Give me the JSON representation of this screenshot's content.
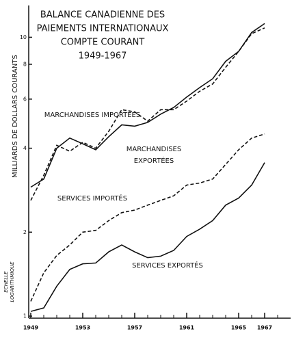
{
  "chart_data": {
    "type": "line",
    "title": [
      "BALANCE CANADIENNE DES",
      "PAIEMENTS INTERNATIONAUX",
      "COMPTE COURANT",
      "1949-1967"
    ],
    "y_label": "MILLIARDS DE DOLLARS COURANTS",
    "scale_label": [
      "ECHELLE",
      "LOGARITHMIQUE"
    ],
    "log_scale": true,
    "x": [
      1949,
      1950,
      1951,
      1952,
      1953,
      1954,
      1955,
      1956,
      1957,
      1958,
      1959,
      1960,
      1961,
      1962,
      1963,
      1964,
      1965,
      1966,
      1967
    ],
    "series": [
      {
        "name": "MARCHANDISES IMPORTÉES",
        "color": "#111111",
        "dash": true,
        "values": [
          2.6,
          3.2,
          4.1,
          3.9,
          4.2,
          4.0,
          4.6,
          5.5,
          5.4,
          5.0,
          5.5,
          5.5,
          5.9,
          6.4,
          6.8,
          7.8,
          8.9,
          10.3,
          10.8
        ]
      },
      {
        "name": "MARCHANDISES EXPORTÉES",
        "color": "#111111",
        "dash": false,
        "values": [
          2.9,
          3.1,
          4.0,
          4.35,
          4.15,
          3.95,
          4.4,
          4.85,
          4.8,
          4.95,
          5.3,
          5.6,
          6.1,
          6.6,
          7.1,
          8.2,
          8.9,
          10.4,
          11.2
        ]
      },
      {
        "name": "SERVICES IMPORTÉS",
        "color": "#111111",
        "dash": true,
        "values": [
          1.13,
          1.43,
          1.65,
          1.8,
          2.0,
          2.03,
          2.2,
          2.35,
          2.4,
          2.5,
          2.6,
          2.7,
          2.95,
          3.0,
          3.1,
          3.5,
          3.95,
          4.35,
          4.5
        ]
      },
      {
        "name": "SERVICES EXPORTÉS",
        "color": "#111111",
        "dash": false,
        "values": [
          1.04,
          1.07,
          1.28,
          1.47,
          1.54,
          1.55,
          1.7,
          1.8,
          1.7,
          1.62,
          1.64,
          1.72,
          1.93,
          2.05,
          2.2,
          2.5,
          2.65,
          2.95,
          3.55
        ]
      }
    ],
    "xlim": [
      1949,
      1969
    ],
    "xticks": [
      1949,
      1953,
      1957,
      1961,
      1965,
      1967
    ],
    "xminorticks": [
      1950,
      1951,
      1952,
      1954,
      1955,
      1956,
      1958,
      1959,
      1960,
      1962,
      1963,
      1964,
      1966,
      1968
    ],
    "ylim": [
      1,
      13
    ],
    "yticks": [
      1,
      2,
      4,
      6,
      8,
      10
    ]
  }
}
